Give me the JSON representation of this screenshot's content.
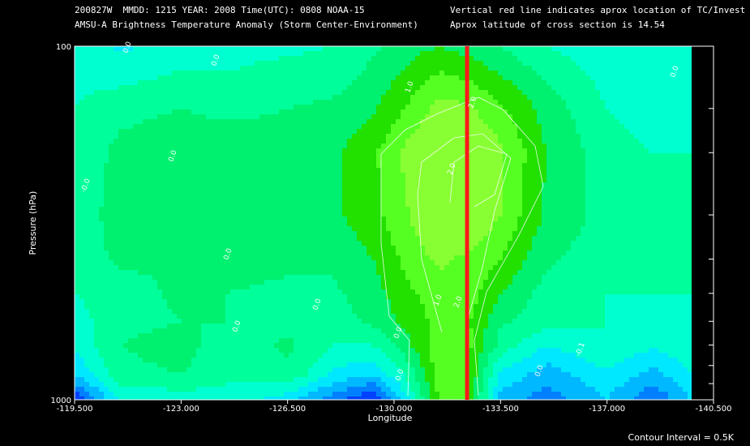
{
  "header": {
    "line1": "200827W  MMDD: 1215 YEAR: 2008 Time(UTC): 0808 NOAA-15",
    "line2": "AMSU-A Brightness Temperature Anomaly (Storm Center-Environment)",
    "right1": "Vertical red line indicates aprox location of TC/Invest",
    "right2": "Aprox latitude of cross section is 14.54"
  },
  "footer": {
    "contour_interval": "Contour Interval = 0.5K"
  },
  "colors": {
    "background": "#000000",
    "marker": "#ff1a1a",
    "levels": [
      "#0040ff",
      "#0080ff",
      "#00b8ff",
      "#00e8ff",
      "#00ffd0",
      "#00ff9a",
      "#00f070",
      "#22e000",
      "#55ff22",
      "#88ff33"
    ]
  },
  "chart_data": {
    "type": "heatmap",
    "title": "AMSU-A Brightness Temperature Anomaly (Storm Center-Environment)",
    "xlabel": "Longitude",
    "ylabel": "Pressure (hPa)",
    "x_ticks": [
      "-119.500",
      "-123.000",
      "-126.500",
      "-130.000",
      "-133.500",
      "-137.000",
      "-140.500"
    ],
    "y_ticks": [
      "100",
      "1000"
    ],
    "xlim": [
      -119.5,
      -140.5
    ],
    "ylim": [
      1000,
      100
    ],
    "y_scale": "log",
    "marker_longitude": -132.4,
    "contour_labels": [
      "0.0",
      "0.0",
      "1.0",
      "2.0",
      "2.0",
      "0.0",
      "-0.0",
      "0.0",
      "0.0",
      "0.0",
      "0.0",
      "1.0",
      "2.0",
      "0.0",
      "0.0",
      "-0.1",
      "0.0"
    ],
    "x": [
      -119.5,
      -121.0,
      -123.0,
      -124.5,
      -126.5,
      -128.0,
      -129.3,
      -130.5,
      -131.5,
      -132.4,
      -133.5,
      -135.0,
      -137.0,
      -138.5,
      -140.0
    ],
    "y": [
      100,
      150,
      200,
      300,
      400,
      500,
      600,
      700,
      850,
      1000
    ],
    "z": [
      [
        -0.2,
        -0.6,
        -0.3,
        -0.2,
        -0.1,
        0.0,
        0.4,
        0.8,
        1.0,
        0.8,
        0.5,
        0.0,
        -0.3,
        -0.2,
        -0.5
      ],
      [
        0.0,
        0.3,
        0.5,
        0.3,
        0.5,
        0.6,
        0.9,
        1.6,
        2.2,
        2.1,
        1.6,
        0.8,
        0.0,
        -0.2,
        0.0
      ],
      [
        0.0,
        0.7,
        0.9,
        1.0,
        0.8,
        0.9,
        1.4,
        2.2,
        2.6,
        2.7,
        2.1,
        1.0,
        0.2,
        0.0,
        0.0
      ],
      [
        0.1,
        0.8,
        1.0,
        0.9,
        0.8,
        0.9,
        1.3,
        2.0,
        2.7,
        2.7,
        2.0,
        0.9,
        0.3,
        0.0,
        0.0
      ],
      [
        0.2,
        0.6,
        0.5,
        0.7,
        0.6,
        0.6,
        1.0,
        1.7,
        2.1,
        1.9,
        1.5,
        0.6,
        0.2,
        0.0,
        0.0
      ],
      [
        0.0,
        0.3,
        0.6,
        0.5,
        0.4,
        0.4,
        0.8,
        1.4,
        1.8,
        1.8,
        1.0,
        0.3,
        0.0,
        0.0,
        0.0
      ],
      [
        -0.2,
        0.3,
        0.5,
        0.5,
        0.3,
        0.3,
        0.6,
        1.2,
        1.7,
        1.6,
        0.6,
        0.2,
        0.0,
        -0.1,
        0.0
      ],
      [
        -0.4,
        0.5,
        0.8,
        0.1,
        0.6,
        0.0,
        0.0,
        0.9,
        1.9,
        1.7,
        0.3,
        -0.5,
        0.0,
        -0.4,
        0.0
      ],
      [
        -1.0,
        0.3,
        0.5,
        0.1,
        0.4,
        -0.6,
        -1.0,
        0.2,
        1.8,
        1.6,
        -0.6,
        -1.3,
        -0.6,
        -1.2,
        -0.4
      ],
      [
        -2.5,
        -0.4,
        -0.3,
        -0.2,
        -0.8,
        -1.8,
        -2.5,
        -0.5,
        1.6,
        1.5,
        -1.2,
        -1.8,
        -1.0,
        -2.0,
        -0.8
      ]
    ]
  }
}
